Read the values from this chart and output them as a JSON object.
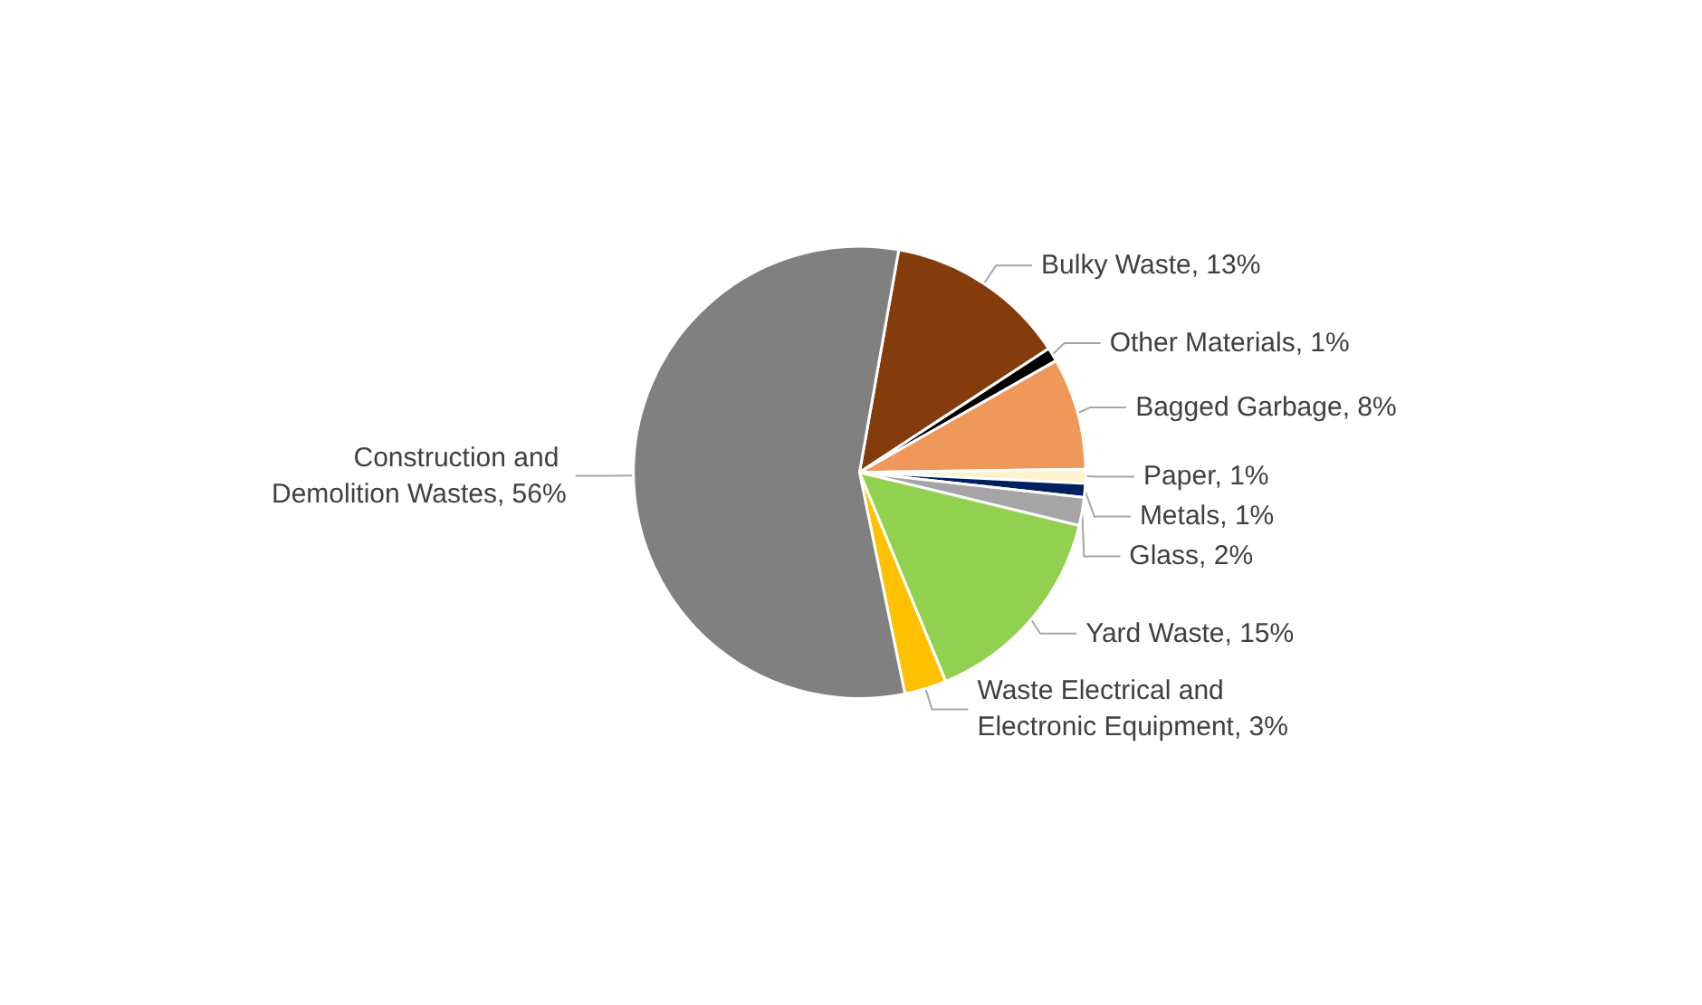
{
  "chart_data": {
    "type": "pie",
    "categories": [
      "Bulky Waste",
      "Other Materials",
      "Bagged Garbage",
      "Paper",
      "Metals",
      "Glass",
      "Yard Waste",
      "Waste Electrical and Electronic Equipment",
      "Construction and Demolition Wastes"
    ],
    "values": [
      13,
      1,
      8,
      1,
      1,
      2,
      15,
      3,
      56
    ],
    "value_labels": [
      "13%",
      "1%",
      "8%",
      "1%",
      "1%",
      "2%",
      "15%",
      "3%",
      "56%"
    ],
    "colors": [
      "#843c0c",
      "#000000",
      "#f0975a",
      "#fff2cc",
      "#002060",
      "#a5a5a5",
      "#92d050",
      "#ffc000",
      "#808080"
    ],
    "data_labels": true,
    "legend": false
  }
}
